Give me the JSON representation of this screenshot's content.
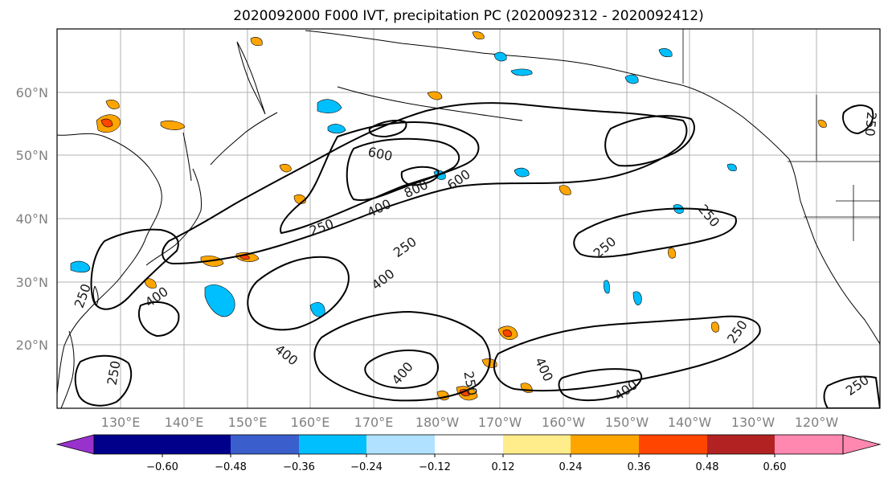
{
  "title": "2020092000 F000 IVT, precipitation PC (2020092312 - 2020092412)",
  "map": {
    "lat_labels": [
      "60°N",
      "50°N",
      "40°N",
      "30°N",
      "20°N"
    ],
    "lon_labels": [
      "130°E",
      "140°E",
      "150°E",
      "160°E",
      "170°E",
      "180°W",
      "170°W",
      "160°W",
      "150°W",
      "140°W",
      "130°W",
      "120°W"
    ],
    "contour_labels": [
      "600",
      "800",
      "600",
      "400",
      "250",
      "250",
      "400",
      "250",
      "250",
      "400",
      "400",
      "400",
      "400",
      "250",
      "250",
      "400",
      "250",
      "250",
      "250",
      "250"
    ]
  },
  "colorbar": {
    "tick_labels": [
      "−0.60",
      "−0.48",
      "−0.36",
      "−0.24",
      "−0.12",
      "0.12",
      "0.24",
      "0.36",
      "0.48",
      "0.60"
    ],
    "colors": [
      "#9932cc",
      "#00008b",
      "#3a5fcd",
      "#00bfff",
      "#b0e2ff",
      "#ffffff",
      "#ffec8b",
      "#ffa500",
      "#ff4500",
      "#b22222",
      "#ff88b0"
    ]
  }
}
